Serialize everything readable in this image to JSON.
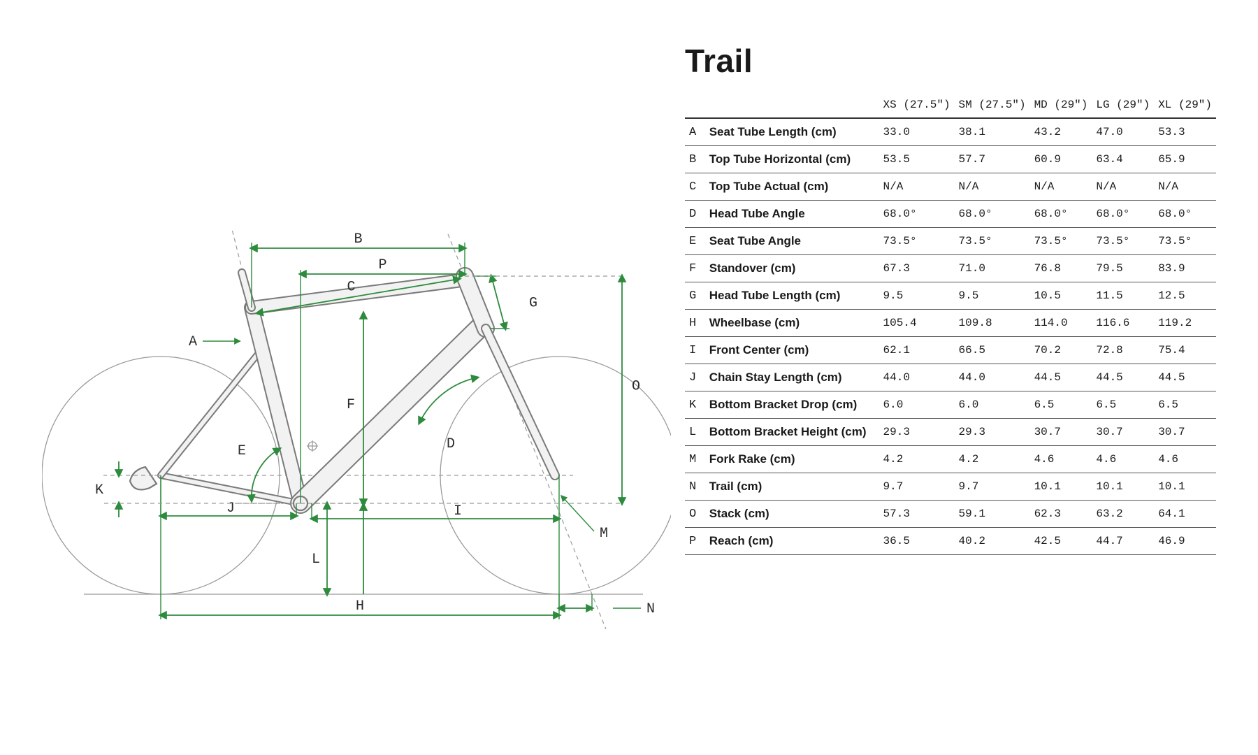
{
  "title": "Trail",
  "diagram": {
    "dim_color": "#2e8b3d",
    "frame_stroke": "#7a7a7a",
    "frame_fill": "#f2f2f2",
    "wheel_stroke": "#9a9a9a",
    "dash_color": "#9a9a9a",
    "label_color": "#2a2a2a",
    "labels": [
      "A",
      "B",
      "C",
      "D",
      "E",
      "F",
      "G",
      "H",
      "I",
      "J",
      "K",
      "L",
      "M",
      "N",
      "O",
      "P"
    ]
  },
  "table": {
    "columns": [
      {
        "label": "XS (27.5\")"
      },
      {
        "label": "SM (27.5\")"
      },
      {
        "label": "MD (29\")"
      },
      {
        "label": "LG (29\")"
      },
      {
        "label": "XL (29\")"
      }
    ],
    "rows": [
      {
        "key": "A",
        "metric": "Seat Tube Length (cm)",
        "values": [
          "33.0",
          "38.1",
          "43.2",
          "47.0",
          "53.3"
        ]
      },
      {
        "key": "B",
        "metric": "Top Tube Horizontal (cm)",
        "values": [
          "53.5",
          "57.7",
          "60.9",
          "63.4",
          "65.9"
        ]
      },
      {
        "key": "C",
        "metric": "Top Tube Actual (cm)",
        "values": [
          "N/A",
          "N/A",
          "N/A",
          "N/A",
          "N/A"
        ]
      },
      {
        "key": "D",
        "metric": "Head Tube Angle",
        "values": [
          "68.0°",
          "68.0°",
          "68.0°",
          "68.0°",
          "68.0°"
        ]
      },
      {
        "key": "E",
        "metric": "Seat Tube Angle",
        "values": [
          "73.5°",
          "73.5°",
          "73.5°",
          "73.5°",
          "73.5°"
        ]
      },
      {
        "key": "F",
        "metric": "Standover (cm)",
        "values": [
          "67.3",
          "71.0",
          "76.8",
          "79.5",
          "83.9"
        ]
      },
      {
        "key": "G",
        "metric": "Head Tube Length (cm)",
        "values": [
          "9.5",
          "9.5",
          "10.5",
          "11.5",
          "12.5"
        ]
      },
      {
        "key": "H",
        "metric": "Wheelbase (cm)",
        "values": [
          "105.4",
          "109.8",
          "114.0",
          "116.6",
          "119.2"
        ]
      },
      {
        "key": "I",
        "metric": "Front Center (cm)",
        "values": [
          "62.1",
          "66.5",
          "70.2",
          "72.8",
          "75.4"
        ]
      },
      {
        "key": "J",
        "metric": "Chain Stay Length (cm)",
        "values": [
          "44.0",
          "44.0",
          "44.5",
          "44.5",
          "44.5"
        ]
      },
      {
        "key": "K",
        "metric": "Bottom Bracket Drop (cm)",
        "values": [
          "6.0",
          "6.0",
          "6.5",
          "6.5",
          "6.5"
        ]
      },
      {
        "key": "L",
        "metric": "Bottom Bracket Height (cm)",
        "values": [
          "29.3",
          "29.3",
          "30.7",
          "30.7",
          "30.7"
        ]
      },
      {
        "key": "M",
        "metric": "Fork Rake (cm)",
        "values": [
          "4.2",
          "4.2",
          "4.6",
          "4.6",
          "4.6"
        ]
      },
      {
        "key": "N",
        "metric": "Trail (cm)",
        "values": [
          "9.7",
          "9.7",
          "10.1",
          "10.1",
          "10.1"
        ]
      },
      {
        "key": "O",
        "metric": "Stack (cm)",
        "values": [
          "57.3",
          "59.1",
          "62.3",
          "63.2",
          "64.1"
        ]
      },
      {
        "key": "P",
        "metric": "Reach (cm)",
        "values": [
          "36.5",
          "40.2",
          "42.5",
          "44.7",
          "46.9"
        ]
      }
    ]
  }
}
